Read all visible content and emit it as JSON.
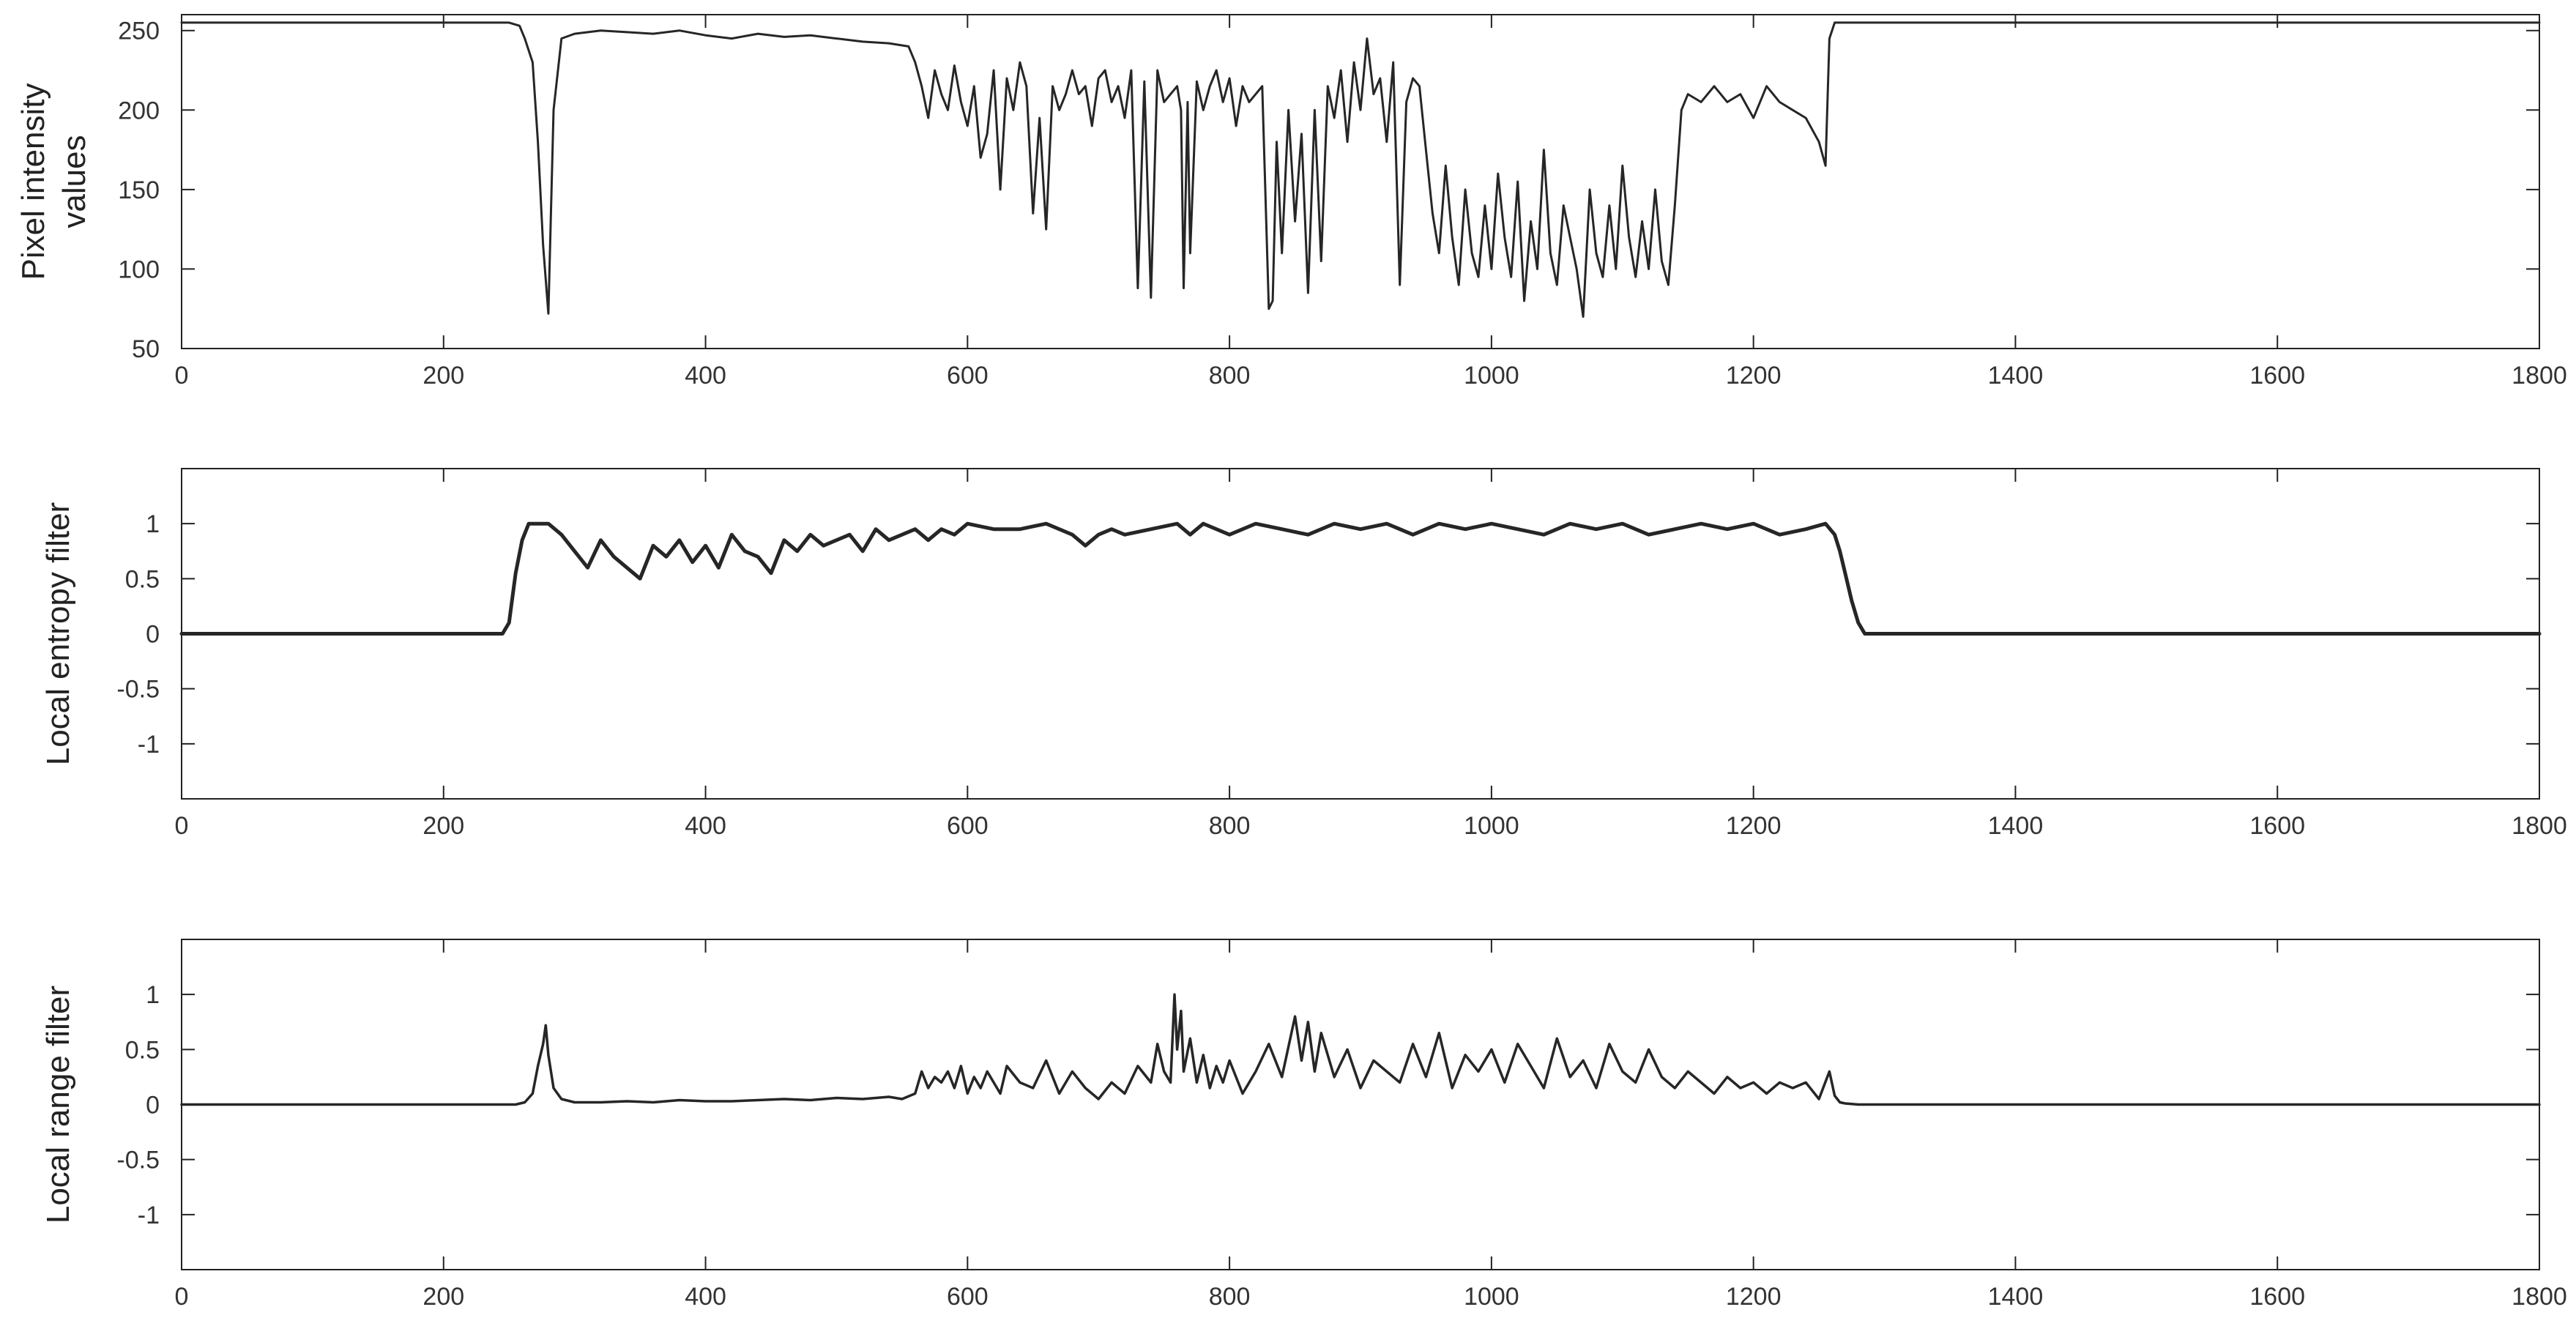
{
  "colors": {
    "line": "#262626",
    "axes": "#222222",
    "background": "#ffffff"
  },
  "chart_data": [
    {
      "type": "line",
      "ylabel_lines": [
        "Pixel intensity",
        "values"
      ],
      "xlim": [
        0,
        1800
      ],
      "ylim": [
        50,
        260
      ],
      "xticks": [
        0,
        200,
        400,
        600,
        800,
        1000,
        1200,
        1400,
        1600,
        1800
      ],
      "yticks": [
        50,
        100,
        150,
        200,
        250
      ],
      "grid": false,
      "series": [
        {
          "x": [
            0,
            250,
            258,
            262,
            268,
            272,
            276,
            280,
            284,
            290,
            300,
            320,
            340,
            360,
            380,
            400,
            420,
            440,
            460,
            480,
            500,
            520,
            540,
            555,
            560,
            565,
            570,
            575,
            580,
            585,
            590,
            595,
            600,
            605,
            610,
            615,
            620,
            625,
            630,
            635,
            640,
            645,
            650,
            655,
            660,
            665,
            670,
            675,
            680,
            685,
            690,
            695,
            700,
            705,
            710,
            715,
            720,
            725,
            730,
            735,
            740,
            745,
            750,
            755,
            760,
            763,
            765,
            768,
            770,
            775,
            780,
            785,
            790,
            795,
            800,
            805,
            810,
            815,
            820,
            825,
            830,
            833,
            836,
            840,
            845,
            850,
            855,
            860,
            865,
            870,
            875,
            880,
            885,
            890,
            895,
            900,
            905,
            910,
            915,
            920,
            925,
            930,
            935,
            940,
            945,
            950,
            955,
            960,
            965,
            970,
            975,
            980,
            985,
            990,
            995,
            1000,
            1005,
            1010,
            1015,
            1020,
            1025,
            1030,
            1035,
            1040,
            1045,
            1050,
            1055,
            1060,
            1065,
            1070,
            1075,
            1080,
            1085,
            1090,
            1095,
            1100,
            1105,
            1110,
            1115,
            1120,
            1125,
            1130,
            1135,
            1140,
            1145,
            1150,
            1160,
            1170,
            1180,
            1190,
            1200,
            1210,
            1220,
            1230,
            1240,
            1250,
            1255,
            1258,
            1262,
            1268,
            1280,
            1400,
            1600,
            1800
          ],
          "y": [
            255,
            255,
            253,
            245,
            230,
            180,
            115,
            72,
            200,
            245,
            248,
            250,
            249,
            248,
            250,
            247,
            245,
            248,
            246,
            247,
            245,
            243,
            242,
            240,
            230,
            215,
            195,
            225,
            210,
            200,
            228,
            205,
            190,
            215,
            170,
            185,
            225,
            150,
            220,
            200,
            230,
            215,
            135,
            195,
            125,
            215,
            200,
            210,
            225,
            210,
            215,
            190,
            220,
            225,
            205,
            215,
            195,
            225,
            88,
            218,
            82,
            225,
            205,
            210,
            215,
            200,
            88,
            205,
            110,
            218,
            200,
            215,
            225,
            205,
            220,
            190,
            215,
            205,
            210,
            215,
            75,
            80,
            180,
            110,
            200,
            130,
            185,
            85,
            200,
            105,
            215,
            195,
            225,
            180,
            230,
            200,
            245,
            210,
            220,
            180,
            230,
            90,
            205,
            220,
            215,
            175,
            135,
            110,
            165,
            120,
            90,
            150,
            110,
            95,
            140,
            100,
            160,
            120,
            95,
            155,
            80,
            130,
            100,
            175,
            110,
            90,
            140,
            120,
            100,
            70,
            150,
            110,
            95,
            140,
            100,
            165,
            120,
            95,
            130,
            100,
            150,
            105,
            90,
            140,
            200,
            210,
            205,
            215,
            205,
            210,
            195,
            215,
            205,
            200,
            195,
            180,
            165,
            245,
            255,
            255,
            255,
            255,
            255,
            255
          ]
        }
      ]
    },
    {
      "type": "line",
      "ylabel_lines": [
        "Local entropy filter"
      ],
      "xlim": [
        0,
        1800
      ],
      "ylim": [
        -1.5,
        1.5
      ],
      "xticks": [
        0,
        200,
        400,
        600,
        800,
        1000,
        1200,
        1400,
        1600,
        1800
      ],
      "yticks": [
        1,
        0.5,
        0,
        -0.5,
        -1
      ],
      "grid": false,
      "series": [
        {
          "x": [
            0,
            245,
            250,
            255,
            260,
            265,
            270,
            280,
            290,
            300,
            310,
            320,
            330,
            340,
            350,
            360,
            370,
            380,
            390,
            400,
            410,
            420,
            430,
            440,
            450,
            460,
            470,
            480,
            490,
            500,
            510,
            520,
            530,
            540,
            550,
            560,
            570,
            580,
            590,
            600,
            620,
            640,
            660,
            680,
            690,
            700,
            710,
            720,
            740,
            760,
            770,
            780,
            790,
            800,
            820,
            840,
            860,
            880,
            900,
            920,
            940,
            960,
            980,
            1000,
            1020,
            1040,
            1060,
            1080,
            1100,
            1120,
            1140,
            1160,
            1180,
            1200,
            1220,
            1240,
            1255,
            1262,
            1266,
            1270,
            1275,
            1280,
            1285,
            1400,
            1600,
            1800
          ],
          "y": [
            0,
            0,
            0.1,
            0.55,
            0.85,
            1,
            1,
            1,
            0.9,
            0.75,
            0.6,
            0.85,
            0.7,
            0.6,
            0.5,
            0.8,
            0.7,
            0.85,
            0.65,
            0.8,
            0.6,
            0.9,
            0.75,
            0.7,
            0.55,
            0.85,
            0.75,
            0.9,
            0.8,
            0.85,
            0.9,
            0.75,
            0.95,
            0.85,
            0.9,
            0.95,
            0.85,
            0.95,
            0.9,
            1,
            0.95,
            0.95,
            1,
            0.9,
            0.8,
            0.9,
            0.95,
            0.9,
            0.95,
            1,
            0.9,
            1,
            0.95,
            0.9,
            1,
            0.95,
            0.9,
            1,
            0.95,
            1,
            0.9,
            1,
            0.95,
            1,
            0.95,
            0.9,
            1,
            0.95,
            1,
            0.9,
            0.95,
            1,
            0.95,
            1,
            0.9,
            0.95,
            1,
            0.9,
            0.75,
            0.55,
            0.3,
            0.1,
            0,
            0,
            0,
            0
          ]
        }
      ]
    },
    {
      "type": "line",
      "ylabel_lines": [
        "Local range filter"
      ],
      "xlim": [
        0,
        1800
      ],
      "ylim": [
        -1.5,
        1.5
      ],
      "xticks": [
        0,
        200,
        400,
        600,
        800,
        1000,
        1200,
        1400,
        1600,
        1800
      ],
      "yticks": [
        1,
        0.5,
        0,
        -0.5,
        -1
      ],
      "grid": false,
      "series": [
        {
          "x": [
            0,
            255,
            262,
            268,
            272,
            276,
            278,
            280,
            284,
            290,
            300,
            320,
            340,
            360,
            380,
            400,
            420,
            440,
            460,
            480,
            500,
            520,
            540,
            550,
            560,
            565,
            570,
            575,
            580,
            585,
            590,
            595,
            600,
            605,
            610,
            615,
            620,
            625,
            630,
            640,
            650,
            660,
            670,
            680,
            690,
            700,
            710,
            720,
            730,
            740,
            745,
            750,
            755,
            758,
            760,
            763,
            765,
            770,
            775,
            780,
            785,
            790,
            795,
            800,
            810,
            820,
            830,
            840,
            850,
            855,
            860,
            865,
            870,
            880,
            890,
            900,
            910,
            920,
            930,
            940,
            950,
            960,
            970,
            980,
            990,
            1000,
            1010,
            1020,
            1030,
            1040,
            1050,
            1060,
            1070,
            1080,
            1090,
            1100,
            1110,
            1120,
            1130,
            1140,
            1150,
            1160,
            1170,
            1180,
            1190,
            1200,
            1210,
            1220,
            1230,
            1240,
            1250,
            1258,
            1262,
            1266,
            1270,
            1280,
            1400,
            1600,
            1800
          ],
          "y": [
            0,
            0,
            0.02,
            0.1,
            0.35,
            0.55,
            0.72,
            0.45,
            0.15,
            0.05,
            0.02,
            0.02,
            0.03,
            0.02,
            0.04,
            0.03,
            0.03,
            0.04,
            0.05,
            0.04,
            0.06,
            0.05,
            0.07,
            0.05,
            0.1,
            0.3,
            0.15,
            0.25,
            0.2,
            0.3,
            0.15,
            0.35,
            0.1,
            0.25,
            0.15,
            0.3,
            0.2,
            0.1,
            0.35,
            0.2,
            0.15,
            0.4,
            0.1,
            0.3,
            0.15,
            0.05,
            0.2,
            0.1,
            0.35,
            0.2,
            0.55,
            0.3,
            0.2,
            1.0,
            0.5,
            0.85,
            0.3,
            0.6,
            0.2,
            0.45,
            0.15,
            0.35,
            0.2,
            0.4,
            0.1,
            0.3,
            0.55,
            0.25,
            0.8,
            0.4,
            0.75,
            0.3,
            0.65,
            0.25,
            0.5,
            0.15,
            0.4,
            0.3,
            0.2,
            0.55,
            0.25,
            0.65,
            0.15,
            0.45,
            0.3,
            0.5,
            0.2,
            0.55,
            0.35,
            0.15,
            0.6,
            0.25,
            0.4,
            0.15,
            0.55,
            0.3,
            0.2,
            0.5,
            0.25,
            0.15,
            0.3,
            0.2,
            0.1,
            0.25,
            0.15,
            0.2,
            0.1,
            0.2,
            0.15,
            0.2,
            0.05,
            0.3,
            0.08,
            0.02,
            0.01,
            0,
            0,
            0,
            0
          ]
        }
      ]
    }
  ]
}
